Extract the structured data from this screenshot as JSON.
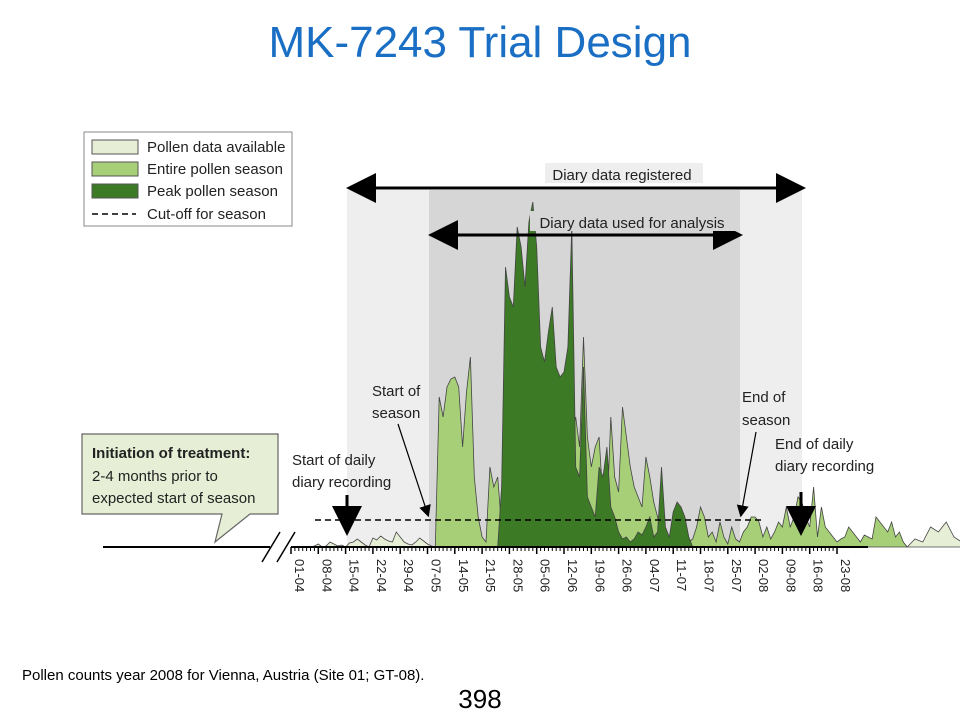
{
  "title": "MK-7243 Trial Design",
  "footnote": "Pollen counts year 2008 for Vienna, Austria (Site 01; GT-08).",
  "page_number": "398",
  "legend": {
    "items": [
      {
        "label": "Pollen data available",
        "color": "#e6efd6"
      },
      {
        "label": "Entire pollen season",
        "color": "#a6cf78"
      },
      {
        "label": "Peak pollen season",
        "color": "#3c7a25"
      },
      {
        "label": "Cut-off for season",
        "color": "#000000"
      }
    ]
  },
  "annotations": {
    "diary_registered": "Diary data registered",
    "diary_analysis": "Diary data used for analysis",
    "start_season": [
      "Start of",
      "season"
    ],
    "end_season": [
      "End of",
      "season"
    ],
    "start_daily": [
      "Start of daily",
      "diary recording"
    ],
    "end_daily": [
      "End of daily",
      "diary recording"
    ],
    "treatment_box": [
      "Initiation of treatment:",
      "2-4 months prior to",
      "expected start of season"
    ]
  },
  "colors": {
    "title": "#1a6fc4",
    "available": "#e6efd6",
    "season": "#a6cf78",
    "peak": "#3c7a25",
    "outline": "#444444"
  },
  "chart_data": {
    "type": "area",
    "x_tick_labels": [
      "01-04",
      "08-04",
      "15-04",
      "22-04",
      "29-04",
      "07-05",
      "14-05",
      "21-05",
      "28-05",
      "05-06",
      "12-06",
      "19-06",
      "26-06",
      "04-07",
      "11-07",
      "18-07",
      "25-07",
      "02-08",
      "09-08",
      "16-08",
      "23-08"
    ],
    "y_axis": "none (relative pollen counts)",
    "series": [
      {
        "region": "available",
        "x_days": [
          0,
          3,
          5,
          6,
          7,
          8,
          9,
          10,
          11,
          12,
          13,
          14,
          15,
          16,
          17,
          18,
          19,
          20,
          21,
          22,
          23,
          24,
          25,
          26,
          27,
          28,
          29,
          30,
          31,
          32,
          33,
          34,
          35,
          36,
          37
        ],
        "values": [
          0,
          0,
          0,
          1,
          3,
          0,
          1,
          5,
          3,
          1,
          2,
          0,
          4,
          5,
          8,
          5,
          2,
          0,
          9,
          7,
          11,
          8,
          6,
          5,
          15,
          10,
          5,
          3,
          2,
          5,
          9,
          6,
          3,
          1,
          0
        ]
      },
      {
        "region": "season",
        "x_days": [
          37,
          38,
          39,
          40,
          41,
          42,
          43,
          44,
          45,
          46,
          47,
          48,
          49,
          50,
          51,
          52,
          53,
          54,
          55,
          56,
          57,
          58,
          59,
          60,
          61,
          62,
          63,
          64,
          65,
          66,
          67,
          68,
          69,
          70,
          71,
          72,
          73,
          74,
          75,
          76,
          77,
          78,
          79,
          80,
          81,
          82,
          83,
          84,
          85,
          86,
          87,
          88,
          89,
          90,
          91,
          92,
          93,
          94,
          95,
          96,
          97,
          98,
          99,
          100,
          101,
          102,
          103,
          104,
          105,
          106,
          107,
          108,
          109,
          110,
          111,
          112,
          113,
          114,
          115,
          116,
          117,
          118,
          119,
          120,
          121,
          122,
          123,
          124,
          125,
          126,
          127,
          128,
          129,
          130,
          131,
          132,
          133,
          134,
          135,
          136,
          137,
          138,
          139,
          140,
          141,
          142,
          143,
          144,
          145,
          146,
          147,
          148,
          149,
          150,
          151,
          152,
          153,
          154,
          155,
          156,
          157,
          158
        ],
        "values": [
          0,
          150,
          130,
          160,
          168,
          170,
          160,
          100,
          155,
          190,
          70,
          30,
          10,
          5,
          80,
          60,
          70,
          20,
          90,
          35,
          10,
          80,
          5,
          40,
          10,
          20,
          30,
          20,
          45,
          60,
          95,
          75,
          55,
          60,
          120,
          110,
          130,
          100,
          210,
          110,
          80,
          100,
          110,
          45,
          30,
          130,
          70,
          55,
          140,
          110,
          80,
          60,
          50,
          40,
          90,
          70,
          45,
          30,
          10,
          0,
          10,
          5,
          15,
          30,
          12,
          5,
          8,
          20,
          40,
          30,
          10,
          15,
          5,
          25,
          10,
          3,
          20,
          8,
          5,
          15,
          20,
          30,
          30,
          25,
          10,
          20,
          8,
          15,
          25,
          20,
          40,
          20,
          30,
          50,
          45,
          30,
          20,
          60,
          10,
          40,
          20,
          15,
          10,
          5,
          8,
          10,
          20,
          15,
          10,
          5,
          12,
          10,
          8,
          30,
          25,
          20,
          15,
          25,
          10,
          15,
          5,
          0
        ]
      },
      {
        "region": "peak",
        "x_days": [
          53,
          54,
          55,
          56,
          57,
          58,
          59,
          60,
          61,
          62,
          63,
          64,
          65,
          66,
          67,
          68,
          69,
          70,
          71,
          72,
          73,
          74,
          75,
          76,
          77,
          78,
          79,
          80,
          81,
          82,
          83,
          84,
          85,
          86,
          87,
          88,
          89,
          90,
          91,
          92,
          93,
          94,
          95,
          96,
          97,
          98,
          99,
          100,
          101,
          102,
          103
        ],
        "values": [
          0,
          60,
          280,
          250,
          240,
          320,
          300,
          260,
          325,
          345,
          300,
          200,
          185,
          215,
          240,
          180,
          170,
          175,
          200,
          320,
          80,
          70,
          180,
          50,
          40,
          30,
          80,
          70,
          100,
          40,
          30,
          15,
          8,
          10,
          5,
          8,
          15,
          12,
          20,
          30,
          10,
          15,
          80,
          20,
          10,
          35,
          45,
          40,
          30,
          10,
          0
        ]
      },
      {
        "region": "late",
        "x_days": [
          158,
          160,
          162,
          164,
          166,
          168,
          170,
          172,
          174,
          176,
          178,
          180,
          182,
          184,
          186,
          188,
          190,
          192,
          194,
          196,
          198,
          200,
          202,
          204,
          206,
          208,
          210
        ],
        "values": [
          0,
          8,
          5,
          20,
          15,
          25,
          10,
          5,
          22,
          8,
          30,
          20,
          12,
          5,
          0,
          10,
          8,
          5,
          3,
          2,
          8,
          3,
          5,
          0,
          3,
          0,
          0
        ]
      }
    ],
    "markers": {
      "start_daily_day": 14,
      "start_season_day": 37,
      "end_season_day": 116,
      "end_daily_day": 137
    },
    "grid": false
  }
}
